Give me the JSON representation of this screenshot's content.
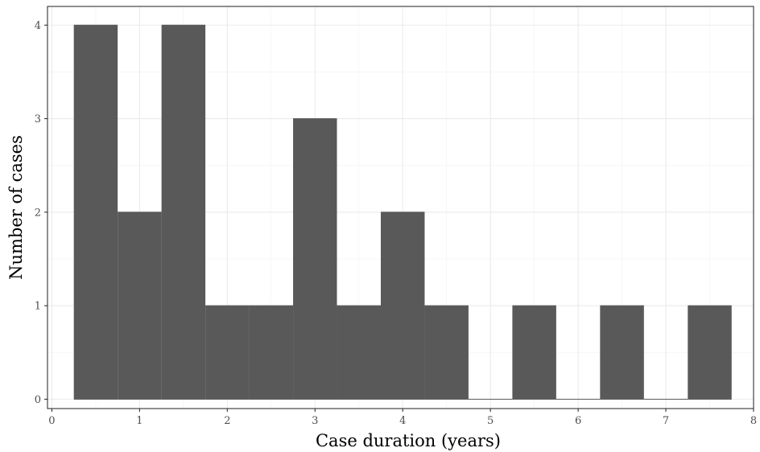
{
  "chart_data": {
    "type": "bar",
    "subtype": "histogram",
    "bin_width": 0.5,
    "bins": [
      {
        "x0": 0.25,
        "x1": 0.75,
        "count": 4
      },
      {
        "x0": 0.75,
        "x1": 1.25,
        "count": 2
      },
      {
        "x0": 1.25,
        "x1": 1.75,
        "count": 4
      },
      {
        "x0": 1.75,
        "x1": 2.25,
        "count": 1
      },
      {
        "x0": 2.25,
        "x1": 2.75,
        "count": 1
      },
      {
        "x0": 2.75,
        "x1": 3.25,
        "count": 3
      },
      {
        "x0": 3.25,
        "x1": 3.75,
        "count": 1
      },
      {
        "x0": 3.75,
        "x1": 4.25,
        "count": 2
      },
      {
        "x0": 4.25,
        "x1": 4.75,
        "count": 1
      },
      {
        "x0": 4.75,
        "x1": 5.25,
        "count": 0
      },
      {
        "x0": 5.25,
        "x1": 5.75,
        "count": 1
      },
      {
        "x0": 5.75,
        "x1": 6.25,
        "count": 0
      },
      {
        "x0": 6.25,
        "x1": 6.75,
        "count": 1
      },
      {
        "x0": 6.75,
        "x1": 7.25,
        "count": 0
      },
      {
        "x0": 7.25,
        "x1": 7.75,
        "count": 1
      }
    ],
    "xlabel": "Case duration (years)",
    "ylabel": "Number of cases",
    "xlim": [
      -0.05,
      8.0
    ],
    "ylim": [
      -0.1,
      4.2
    ],
    "x_ticks": [
      "0",
      "1",
      "2",
      "3",
      "4",
      "5",
      "6",
      "7",
      "8"
    ],
    "y_ticks": [
      "0",
      "1",
      "2",
      "3",
      "4"
    ],
    "grid": true,
    "colors": {
      "bar_fill": "#595959",
      "grid_major": "#ebebeb",
      "grid_minor": "#f2f2f2",
      "panel_border": "#333333",
      "tick_text": "#4d4d4d"
    }
  }
}
